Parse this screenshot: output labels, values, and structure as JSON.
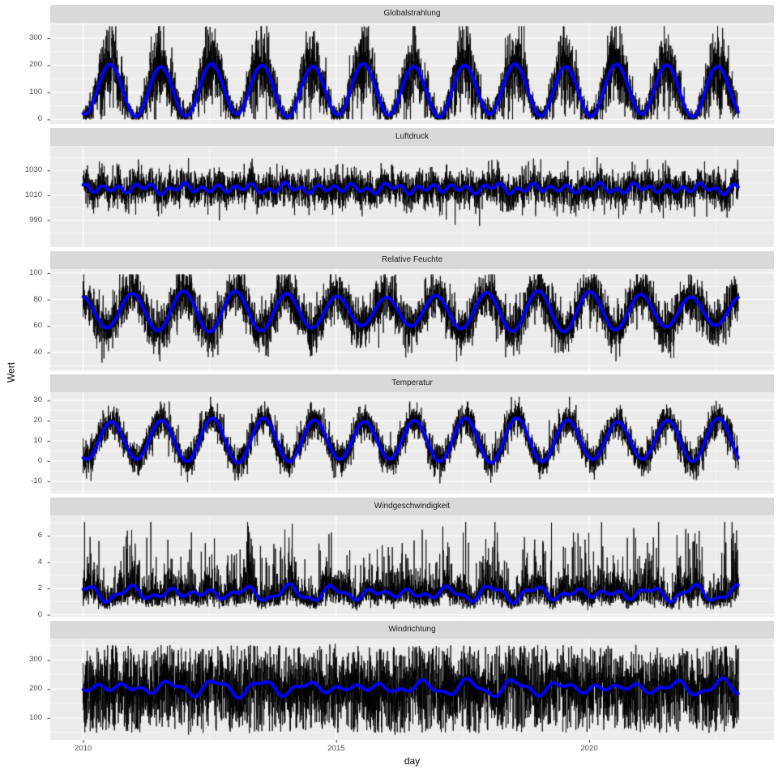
{
  "chart_data": {
    "type": "line",
    "description": "Six vertically faceted daily weather time series (black raw daily values) each overlaid with a thick blue smoothed seasonal trend, ggplot2 grey theme",
    "x_axis": {
      "label": "day",
      "ticks": [
        2010,
        2015,
        2020
      ],
      "tick_labels": [
        "2010",
        "2015",
        "2020"
      ],
      "minor_ticks": [
        2012.5,
        2017.5,
        2022.5
      ],
      "domain": [
        2009.35,
        2023.65
      ],
      "data_start": 2010,
      "data_end": 2022.95
    },
    "y_axis_label": "Wert",
    "legend": "none",
    "grid": "white major and minor gridlines on grey panels",
    "series_styles": [
      {
        "name": "daily-raw-values",
        "color": "#000000",
        "line_width": 0.85
      },
      {
        "name": "smoothed-trend",
        "color": "#0000FF",
        "line_width": 4
      }
    ],
    "sampling": {
      "points_per_year": 365,
      "seed": 1337
    },
    "panels": [
      {
        "strip_label": "Globalstrahlung",
        "y_ticks": [
          0,
          100,
          200,
          300
        ],
        "y_tick_labels": [
          "0",
          "100",
          "200",
          "300"
        ],
        "y_minor": [
          50,
          150,
          250,
          350
        ],
        "ylim": [
          -17,
          357
        ],
        "trend_range": [
          14,
          210
        ],
        "raw_range": [
          0,
          340
        ],
        "smooth": {
          "mean": 107,
          "amp": 93,
          "peak": 0.53,
          "wiggles": [
            [
              6,
              0.37,
              1.3
            ]
          ]
        },
        "noise": {
          "sd0": 12,
          "sd_prop": 0.33,
          "clip": [
            0,
            344
          ]
        }
      },
      {
        "strip_label": "Luftdruck",
        "y_ticks": [
          990,
          1010,
          1030
        ],
        "y_tick_labels": [
          "990",
          "1010",
          "1030"
        ],
        "y_minor": [
          980,
          1000,
          1020,
          1040
        ],
        "ylim": [
          968.3,
          1049.7
        ],
        "trend_range": [
          1011,
          1021
        ],
        "raw_range": [
          974,
          1044
        ],
        "smooth": {
          "mean": 1015.5,
          "amp": 1.2,
          "peak": 0.08,
          "wiggles": [
            [
              2.4,
              3.05,
              0.7
            ],
            [
              1.6,
              1.45,
              2.9
            ]
          ]
        },
        "noise": {
          "sd0": 7.2,
          "sd_prop": 0,
          "dip_p": 0.0035,
          "dip_range": [
            8,
            32
          ],
          "spike_p": 0.002,
          "spike_max": 14,
          "clip": [
            973,
            1045
          ]
        }
      },
      {
        "strip_label": "Relative Feuchte",
        "y_ticks": [
          40,
          60,
          80,
          100
        ],
        "y_tick_labels": [
          "40",
          "60",
          "80",
          "100"
        ],
        "y_minor": [
          30,
          50,
          70,
          90
        ],
        "ylim": [
          26.5,
          103
        ],
        "trend_range": [
          56,
          87
        ],
        "raw_range": [
          33,
          99
        ],
        "smooth": {
          "mean": 71,
          "amp": 13,
          "peak": 0.99,
          "wiggles": [
            [
              2.5,
              0.85,
              4.0
            ]
          ]
        },
        "noise": {
          "sd0": 9,
          "sd_prop": 0,
          "clip": [
            31,
            99
          ]
        }
      },
      {
        "strip_label": "Temperatur",
        "y_ticks": [
          -10,
          0,
          10,
          20,
          30
        ],
        "y_tick_labels": [
          "-10",
          "0",
          "10",
          "20",
          "30"
        ],
        "y_minor": [
          -15,
          -5,
          5,
          15,
          25
        ],
        "ylim": [
          -16.1,
          34.1
        ],
        "trend_range": [
          0,
          22
        ],
        "raw_range": [
          -13,
          31
        ],
        "smooth": {
          "mean": 10.3,
          "amp": 10.2,
          "peak": 0.555,
          "wiggles": [
            [
              1.0,
              0.8,
              2.0
            ]
          ]
        },
        "noise": {
          "sd0": 4.1,
          "sd_prop": 0,
          "clip": [
            -13.8,
            31.8
          ]
        }
      },
      {
        "strip_label": "Windgeschwindigkeit",
        "y_ticks": [
          0,
          2,
          4,
          6
        ],
        "y_tick_labels": [
          "0",
          "2",
          "4",
          "6"
        ],
        "y_minor": [
          1,
          3,
          5,
          7
        ],
        "ylim": [
          -0.15,
          7.55
        ],
        "trend_range": [
          1.0,
          2.5
        ],
        "raw_range": [
          0.3,
          7.0
        ],
        "smooth": {
          "mean": 1.62,
          "amp": 0.22,
          "peak": 0.04,
          "wiggles": [
            [
              0.32,
              1.25,
              1.0
            ],
            [
              0.2,
              2.6,
              4.2
            ]
          ]
        },
        "noise": {
          "lognorm": 0.4,
          "spike_p": 0.035,
          "spike_max": 4.6,
          "clip": [
            0.25,
            7.05
          ]
        }
      },
      {
        "strip_label": "Windrichtung",
        "y_ticks": [
          100,
          200,
          300
        ],
        "y_tick_labels": [
          "100",
          "200",
          "300"
        ],
        "y_minor": [
          50,
          150,
          250,
          350
        ],
        "ylim": [
          24.1,
          373.9
        ],
        "trend_range": [
          165,
          240
        ],
        "raw_range": [
          45,
          355
        ],
        "smooth": {
          "mean": 204,
          "amp": 13,
          "peak": 0.58,
          "wiggles": [
            [
              13,
              1.2,
              0.5
            ],
            [
              9,
              2.35,
              3.3
            ]
          ]
        },
        "noise": {
          "sd0": 50,
          "sd_prop": 0,
          "uniform_p": 0.42,
          "uniform_range": [
            48,
            352
          ],
          "clip": [
            42,
            356
          ]
        }
      }
    ]
  },
  "theme": {
    "background": "#FFFFFF",
    "panel_bg": "#EBEBEB",
    "strip_bg": "#D9D9D9",
    "grid_color": "#FFFFFF",
    "tick_mark_color": "#333333",
    "tick_label_color": "#4D4D4D",
    "strip_text_color": "#1A1A1A",
    "axis_title_color": "#000000",
    "raw_line_color": "#000000",
    "smooth_line_color": "#0000FF"
  }
}
